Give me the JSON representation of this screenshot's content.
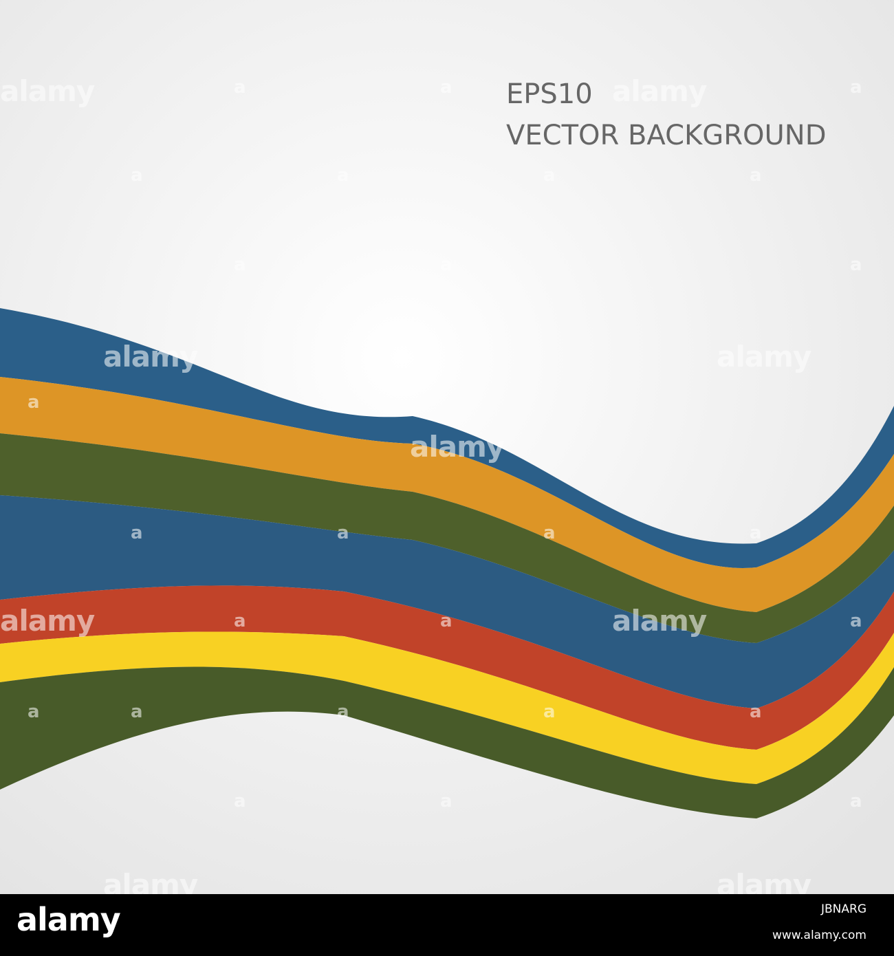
{
  "headline": {
    "line1": "EPS10",
    "line2": "VECTOR BACKGROUND",
    "color": "#666666"
  },
  "background": {
    "center": "#ffffff",
    "edge": "#e4e4e4"
  },
  "stripes": [
    {
      "name": "blue-top",
      "color": "#2b5f89"
    },
    {
      "name": "orange",
      "color": "#dd9526"
    },
    {
      "name": "olive-top",
      "color": "#4e602b"
    },
    {
      "name": "blue-middle",
      "color": "#2c5b82"
    },
    {
      "name": "red",
      "color": "#c14329"
    },
    {
      "name": "yellow",
      "color": "#f8d123"
    },
    {
      "name": "olive-bottom",
      "color": "#485b29"
    }
  ],
  "watermark": {
    "word": "alamy",
    "letter": "a"
  },
  "footer": {
    "logo": "alamy",
    "image_id": "JBNARG",
    "url": "www.alamy.com"
  }
}
